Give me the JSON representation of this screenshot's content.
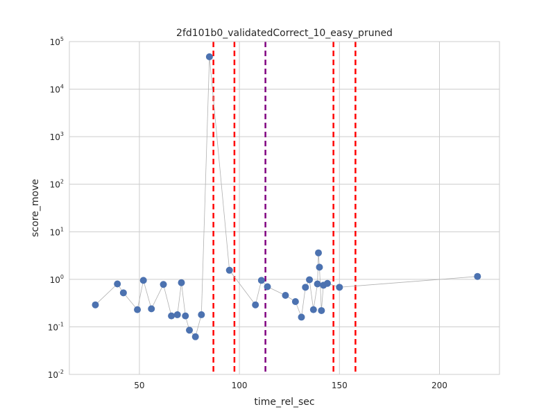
{
  "chart_data": {
    "type": "scatter",
    "title": "2fd101b0_validatedCorrect_10_easy_pruned",
    "xlabel": "time_rel_sec",
    "ylabel": "score_move",
    "xlim": [
      15,
      230
    ],
    "ylim": [
      0.01,
      100000
    ],
    "yscale": "log",
    "grid": true,
    "x_ticks": [
      50,
      100,
      150,
      200
    ],
    "y_ticks": [
      {
        "base": "10",
        "exp": "-2",
        "value": 0.01
      },
      {
        "base": "10",
        "exp": "-1",
        "value": 0.1
      },
      {
        "base": "10",
        "exp": "0",
        "value": 1
      },
      {
        "base": "10",
        "exp": "1",
        "value": 10
      },
      {
        "base": "10",
        "exp": "2",
        "value": 100
      },
      {
        "base": "10",
        "exp": "3",
        "value": 1000
      },
      {
        "base": "10",
        "exp": "4",
        "value": 10000
      },
      {
        "base": "10",
        "exp": "5",
        "value": 100000
      }
    ],
    "series": [
      {
        "marker_color": "#4c72b0",
        "line_color": "#b0b0b0",
        "points": [
          {
            "x": 28,
            "y": 0.29
          },
          {
            "x": 39,
            "y": 0.8
          },
          {
            "x": 42,
            "y": 0.52
          },
          {
            "x": 49,
            "y": 0.23
          },
          {
            "x": 52,
            "y": 0.95
          },
          {
            "x": 56,
            "y": 0.24
          },
          {
            "x": 62,
            "y": 0.78
          },
          {
            "x": 66,
            "y": 0.17
          },
          {
            "x": 69,
            "y": 0.18
          },
          {
            "x": 71,
            "y": 0.85
          },
          {
            "x": 73,
            "y": 0.17
          },
          {
            "x": 75,
            "y": 0.085
          },
          {
            "x": 78,
            "y": 0.062
          },
          {
            "x": 81,
            "y": 0.18
          },
          {
            "x": 85,
            "y": 48000
          },
          {
            "x": 95,
            "y": 1.55
          },
          {
            "x": 108,
            "y": 0.29
          },
          {
            "x": 111,
            "y": 0.95
          },
          {
            "x": 114,
            "y": 0.7
          },
          {
            "x": 123,
            "y": 0.46
          },
          {
            "x": 128,
            "y": 0.34
          },
          {
            "x": 131,
            "y": 0.16
          },
          {
            "x": 133,
            "y": 0.68
          },
          {
            "x": 135,
            "y": 0.98
          },
          {
            "x": 137,
            "y": 0.23
          },
          {
            "x": 139,
            "y": 0.8
          },
          {
            "x": 139.5,
            "y": 3.6
          },
          {
            "x": 140,
            "y": 1.8
          },
          {
            "x": 141,
            "y": 0.22
          },
          {
            "x": 142,
            "y": 0.75
          },
          {
            "x": 144,
            "y": 0.82
          },
          {
            "x": 150,
            "y": 0.68
          },
          {
            "x": 219,
            "y": 1.15
          }
        ]
      }
    ],
    "vertical_lines": [
      {
        "x": 87,
        "color": "#ff0000"
      },
      {
        "x": 97.5,
        "color": "#ff0000"
      },
      {
        "x": 113,
        "color": "#800080"
      },
      {
        "x": 147,
        "color": "#ff0000"
      },
      {
        "x": 158,
        "color": "#ff0000"
      }
    ],
    "colors": {
      "grid": "#cccccc",
      "frame": "#cccccc",
      "background": "#ffffff"
    }
  }
}
